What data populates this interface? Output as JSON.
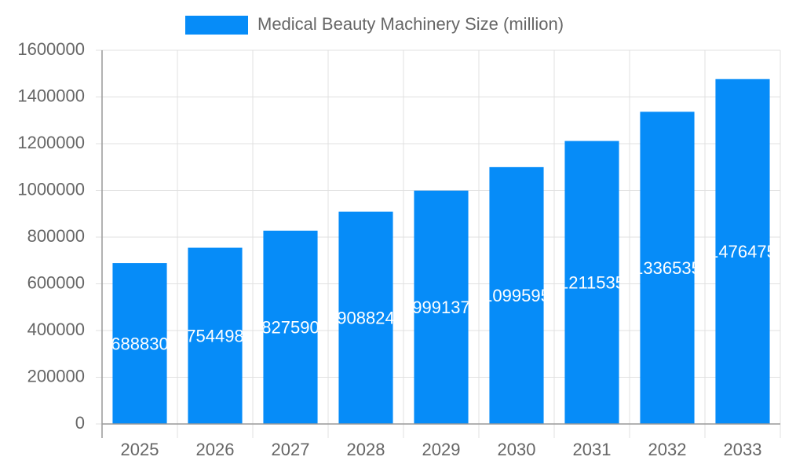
{
  "chart_data": {
    "type": "bar",
    "categories": [
      "2025",
      "2026",
      "2027",
      "2028",
      "2029",
      "2030",
      "2031",
      "2032",
      "2033"
    ],
    "series": [
      {
        "name": "Medical Beauty Machinery Size (million)",
        "color": "#068cf8",
        "values": [
          688830,
          754498,
          827590,
          908824,
          999137,
          1099595,
          1211535,
          1336535,
          1476475
        ]
      }
    ],
    "ylim": [
      0,
      1600000
    ],
    "yticks": [
      0,
      200000,
      400000,
      600000,
      800000,
      1000000,
      1200000,
      1400000,
      1600000
    ],
    "grid": true,
    "legend": "top"
  }
}
